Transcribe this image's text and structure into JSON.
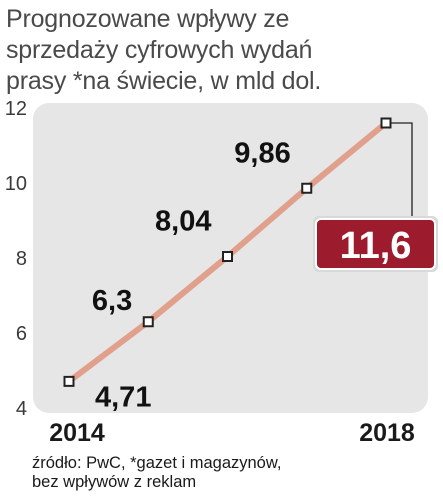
{
  "title_lines": [
    "Prognozowane wpływy ze",
    "sprzedaży cyfrowych wydań",
    "prasy *na świecie, w mld dol."
  ],
  "source_lines": [
    "źródło: PwC, *gazet i magazynów,",
    "bez wpływów z reklam"
  ],
  "colors": {
    "line": "#e0a08c",
    "plot_background": "#e6e6e6",
    "highlight_box": "#9c1b2d",
    "highlight_text": "#ffffff",
    "marker_fill": "#ffffff",
    "marker_stroke": "#222222"
  },
  "chart_data": {
    "type": "line",
    "title": "Prognozowane wpływy ze sprzedaży cyfrowych wydań prasy *na świecie, w mld dol.",
    "x": [
      2014,
      2015,
      2016,
      2017,
      2018
    ],
    "values": [
      4.71,
      6.3,
      8.04,
      9.86,
      11.6
    ],
    "point_labels": [
      "4,71",
      "6,3",
      "8,04",
      "9,86",
      "11,6"
    ],
    "x_tick_labels": [
      "2014",
      "2018"
    ],
    "y_ticks": [
      4,
      6,
      8,
      10,
      12
    ],
    "y_tick_labels": [
      "4",
      "6",
      "8",
      "10",
      "12"
    ],
    "ylim": [
      4,
      12
    ],
    "xlabel": "",
    "ylabel": "",
    "grid": false,
    "highlighted_label": "11,6"
  }
}
